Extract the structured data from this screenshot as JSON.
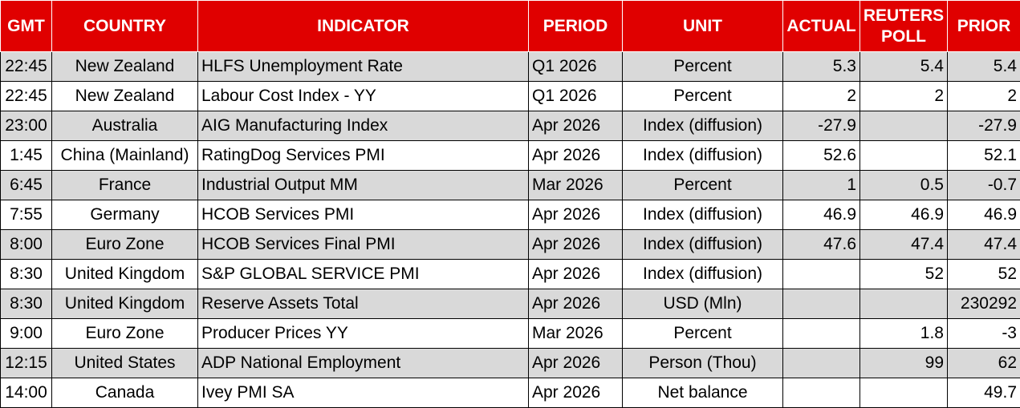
{
  "headers": {
    "gmt": "GMT",
    "country": "COUNTRY",
    "indicator": "INDICATOR",
    "period": "PERIOD",
    "unit": "UNIT",
    "actual": "ACTUAL",
    "reuters_poll": "REUTERS POLL",
    "prior": "PRIOR"
  },
  "rows": [
    {
      "gmt": "22:45",
      "country": "New Zealand",
      "indicator": "HLFS Unemployment Rate",
      "period": "Q1 2026",
      "unit": "Percent",
      "actual": "5.3",
      "poll": "5.4",
      "prior": "5.4"
    },
    {
      "gmt": "22:45",
      "country": "New Zealand",
      "indicator": "Labour Cost Index - YY",
      "period": "Q1 2026",
      "unit": "Percent",
      "actual": "2",
      "poll": "2",
      "prior": "2"
    },
    {
      "gmt": "23:00",
      "country": "Australia",
      "indicator": "AIG Manufacturing Index",
      "period": "Apr 2026",
      "unit": "Index (diffusion)",
      "actual": "-27.9",
      "poll": "",
      "prior": "-27.9"
    },
    {
      "gmt": "1:45",
      "country": "China (Mainland)",
      "indicator": "RatingDog Services PMI",
      "period": "Apr 2026",
      "unit": "Index (diffusion)",
      "actual": "52.6",
      "poll": "",
      "prior": "52.1"
    },
    {
      "gmt": "6:45",
      "country": "France",
      "indicator": "Industrial Output MM",
      "period": "Mar 2026",
      "unit": "Percent",
      "actual": "1",
      "poll": "0.5",
      "prior": "-0.7"
    },
    {
      "gmt": "7:55",
      "country": "Germany",
      "indicator": "HCOB Services PMI",
      "period": "Apr 2026",
      "unit": "Index (diffusion)",
      "actual": "46.9",
      "poll": "46.9",
      "prior": "46.9"
    },
    {
      "gmt": "8:00",
      "country": "Euro Zone",
      "indicator": "HCOB Services Final PMI",
      "period": "Apr 2026",
      "unit": "Index (diffusion)",
      "actual": "47.6",
      "poll": "47.4",
      "prior": "47.4"
    },
    {
      "gmt": "8:30",
      "country": "United Kingdom",
      "indicator": "S&P GLOBAL SERVICE PMI",
      "period": "Apr 2026",
      "unit": "Index (diffusion)",
      "actual": "",
      "poll": "52",
      "prior": "52"
    },
    {
      "gmt": "8:30",
      "country": "United Kingdom",
      "indicator": "Reserve Assets Total",
      "period": "Apr 2026",
      "unit": "USD (Mln)",
      "actual": "",
      "poll": "",
      "prior": "230292"
    },
    {
      "gmt": "9:00",
      "country": "Euro Zone",
      "indicator": "Producer Prices YY",
      "period": "Mar 2026",
      "unit": "Percent",
      "actual": "",
      "poll": "1.8",
      "prior": "-3"
    },
    {
      "gmt": "12:15",
      "country": "United States",
      "indicator": "ADP National Employment",
      "period": "Apr 2026",
      "unit": "Person (Thou)",
      "actual": "",
      "poll": "99",
      "prior": "62"
    },
    {
      "gmt": "14:00",
      "country": "Canada",
      "indicator": "Ivey PMI SA",
      "period": "Apr 2026",
      "unit": "Net balance",
      "actual": "",
      "poll": "",
      "prior": "49.7"
    }
  ],
  "colors": {
    "header_bg": "#e00000",
    "header_text": "#ffffff",
    "band_bg": "#d9d9d9"
  }
}
